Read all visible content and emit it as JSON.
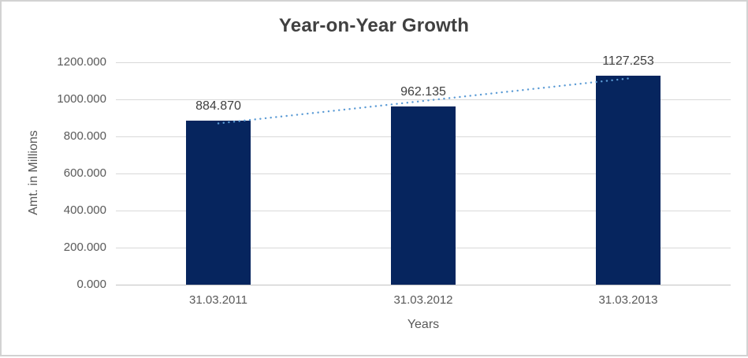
{
  "chart_data": {
    "type": "bar",
    "title": "Year-on-Year Growth",
    "xlabel": "Years",
    "ylabel": "Amt. in Millions",
    "categories": [
      "31.03.2011",
      "31.03.2012",
      "31.03.2013"
    ],
    "values": [
      884.87,
      962.135,
      1127.253
    ],
    "data_labels": [
      "884.870",
      "962.135",
      "1127.253"
    ],
    "ylim": [
      0,
      1200
    ],
    "ytick_step": 200,
    "ytick_labels": [
      "0.000",
      "200.000",
      "400.000",
      "600.000",
      "800.000",
      "1000.000",
      "1200.000"
    ],
    "grid": true,
    "legend": "none",
    "trendline": {
      "type": "linear",
      "style": "dotted"
    },
    "colors": {
      "bar": "#06255e",
      "trendline": "#5b9bd5",
      "gridline": "#d9d9d9",
      "axis_line": "#c3c3c3",
      "title_text": "#404040",
      "tick_text": "#595959",
      "data_label_text": "#404040",
      "frame_border": "#d2d2d2",
      "background": "#ffffff"
    }
  }
}
